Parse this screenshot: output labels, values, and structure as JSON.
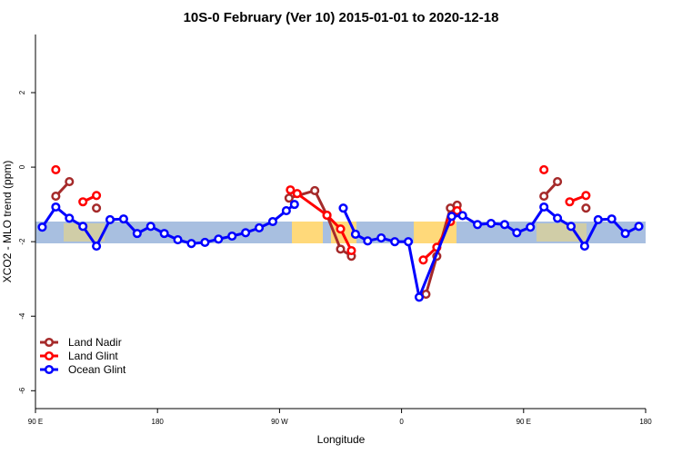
{
  "chart_data": {
    "type": "line",
    "title": "10S-0 February (Ver 10)   2015-01-01 to 2020-12-18",
    "x_label": "Longitude",
    "y_label": "XCO2 - MLO trend (ppm)",
    "xlim": [
      90,
      540
    ],
    "ylim": [
      -6.48,
      3.56
    ],
    "xticks": [
      {
        "value": 90,
        "label": "90 E"
      },
      180,
      {
        "value": 270,
        "label": "90 W"
      },
      {
        "value": 360,
        "label": "0"
      },
      {
        "value": 450,
        "label": "90 E"
      },
      {
        "value": 540,
        "label": "180"
      }
    ],
    "yticks": [
      2,
      0,
      -2,
      -4,
      -6
    ],
    "legend": "bottom-left",
    "series": [
      {
        "name": "Land Nadir",
        "color": "#a52a2a",
        "x": [
          105,
          115,
          125,
          135,
          200,
          277,
          296,
          305,
          315,
          323,
          350,
          378,
          386,
          396,
          401,
          430,
          465,
          475,
          485,
          496
        ],
        "values": [
          -0.78,
          -0.39,
          null,
          -1.1,
          null,
          -0.83,
          -0.63,
          -1.29,
          -2.2,
          -2.39,
          null,
          -3.41,
          -2.39,
          -1.1,
          -1.02,
          null,
          -0.78,
          -0.39,
          null,
          -1.1
        ]
      },
      {
        "name": "Land Glint",
        "color": "#ff0000",
        "x": [
          105,
          115,
          125,
          135,
          200,
          278,
          283,
          305,
          315,
          323,
          350,
          376,
          386,
          396,
          401,
          430,
          465,
          475,
          484,
          496
        ],
        "values": [
          -0.07,
          null,
          -0.93,
          -0.76,
          null,
          -0.61,
          -0.71,
          -1.29,
          -1.66,
          -2.24,
          null,
          -2.49,
          -2.15,
          -1.46,
          -1.17,
          null,
          -0.07,
          null,
          -0.93,
          -0.76
        ]
      },
      {
        "name": "Ocean Glint",
        "color": "#0000ff",
        "x": [
          95,
          105,
          115,
          125,
          135,
          145,
          155,
          165,
          175,
          185,
          195,
          205,
          215,
          225,
          235,
          245,
          255,
          265,
          275,
          281,
          300,
          317,
          326,
          335,
          345,
          355,
          365,
          373,
          397,
          405,
          416,
          426,
          436,
          445,
          455,
          465,
          475,
          485,
          495,
          505,
          515,
          525,
          535
        ],
        "values": [
          -1.61,
          -1.07,
          -1.37,
          -1.59,
          -2.12,
          -1.41,
          -1.39,
          -1.78,
          -1.59,
          -1.78,
          -1.95,
          -2.05,
          -2.02,
          -1.93,
          -1.85,
          -1.76,
          -1.63,
          -1.46,
          -1.17,
          -1.0,
          null,
          -1.1,
          -1.8,
          -1.98,
          -1.9,
          -2.0,
          -2.0,
          -3.49,
          -1.32,
          -1.3,
          -1.54,
          -1.51,
          -1.54,
          -1.76,
          -1.61,
          -1.07,
          -1.37,
          -1.59,
          -2.12,
          -1.41,
          -1.39,
          -1.78,
          -1.59
        ]
      }
    ]
  }
}
